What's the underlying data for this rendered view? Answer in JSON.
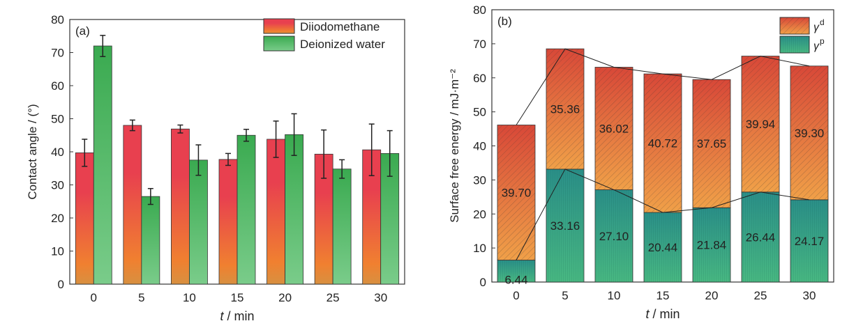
{
  "chart_data": [
    {
      "type": "bar",
      "panel": "(a)",
      "xlabel_italic": "t",
      "xlabel_unit": " / min",
      "ylabel": "Contact angle / (°)",
      "ylim": [
        0,
        80
      ],
      "yticks": [
        0,
        10,
        20,
        30,
        40,
        50,
        60,
        70,
        80
      ],
      "categories": [
        "0",
        "5",
        "10",
        "15",
        "20",
        "25",
        "30"
      ],
      "series": [
        {
          "name": "Diiodomethane",
          "values": [
            39.7,
            48.0,
            46.9,
            37.7,
            43.8,
            39.3,
            40.6
          ],
          "errors": [
            4.1,
            1.6,
            1.2,
            1.8,
            5.5,
            7.3,
            7.8
          ],
          "colors": [
            "#e8404f",
            "#f08030"
          ]
        },
        {
          "name": "Deionized water",
          "values": [
            72.0,
            26.5,
            37.5,
            45.0,
            45.2,
            34.8,
            39.5
          ],
          "errors": [
            3.2,
            2.4,
            4.6,
            1.8,
            6.3,
            2.8,
            6.9
          ],
          "colors": [
            "#3aaa50",
            "#6cc880"
          ]
        }
      ],
      "legend": "top-right"
    },
    {
      "type": "bar",
      "stacked": true,
      "panel": "(b)",
      "xlabel_italic": "t",
      "xlabel_unit": " / min",
      "ylabel": "Surface free energy / mJ·m⁻²",
      "ylim": [
        0,
        80
      ],
      "yticks": [
        0,
        10,
        20,
        30,
        40,
        50,
        60,
        70,
        80
      ],
      "categories": [
        "0",
        "5",
        "10",
        "15",
        "20",
        "25",
        "30"
      ],
      "series": [
        {
          "name": "γp",
          "values": [
            6.44,
            33.16,
            27.1,
            20.44,
            21.84,
            26.44,
            24.17
          ],
          "labels": [
            "6.44",
            "33.16",
            "27.10",
            "20.44",
            "21.84",
            "26.44",
            "24.17"
          ],
          "colors": [
            "#2a8f88",
            "#40b080"
          ]
        },
        {
          "name": "γd",
          "values": [
            39.7,
            35.36,
            36.02,
            40.72,
            37.65,
            39.94,
            39.3
          ],
          "labels": [
            "39.70",
            "35.36",
            "36.02",
            "40.72",
            "37.65",
            "39.94",
            "39.30"
          ],
          "colors": [
            "#d84838",
            "#f0a048"
          ]
        }
      ],
      "legend_labels": [
        "γ",
        "d",
        "γ",
        "p"
      ],
      "legend": "top-right"
    }
  ]
}
